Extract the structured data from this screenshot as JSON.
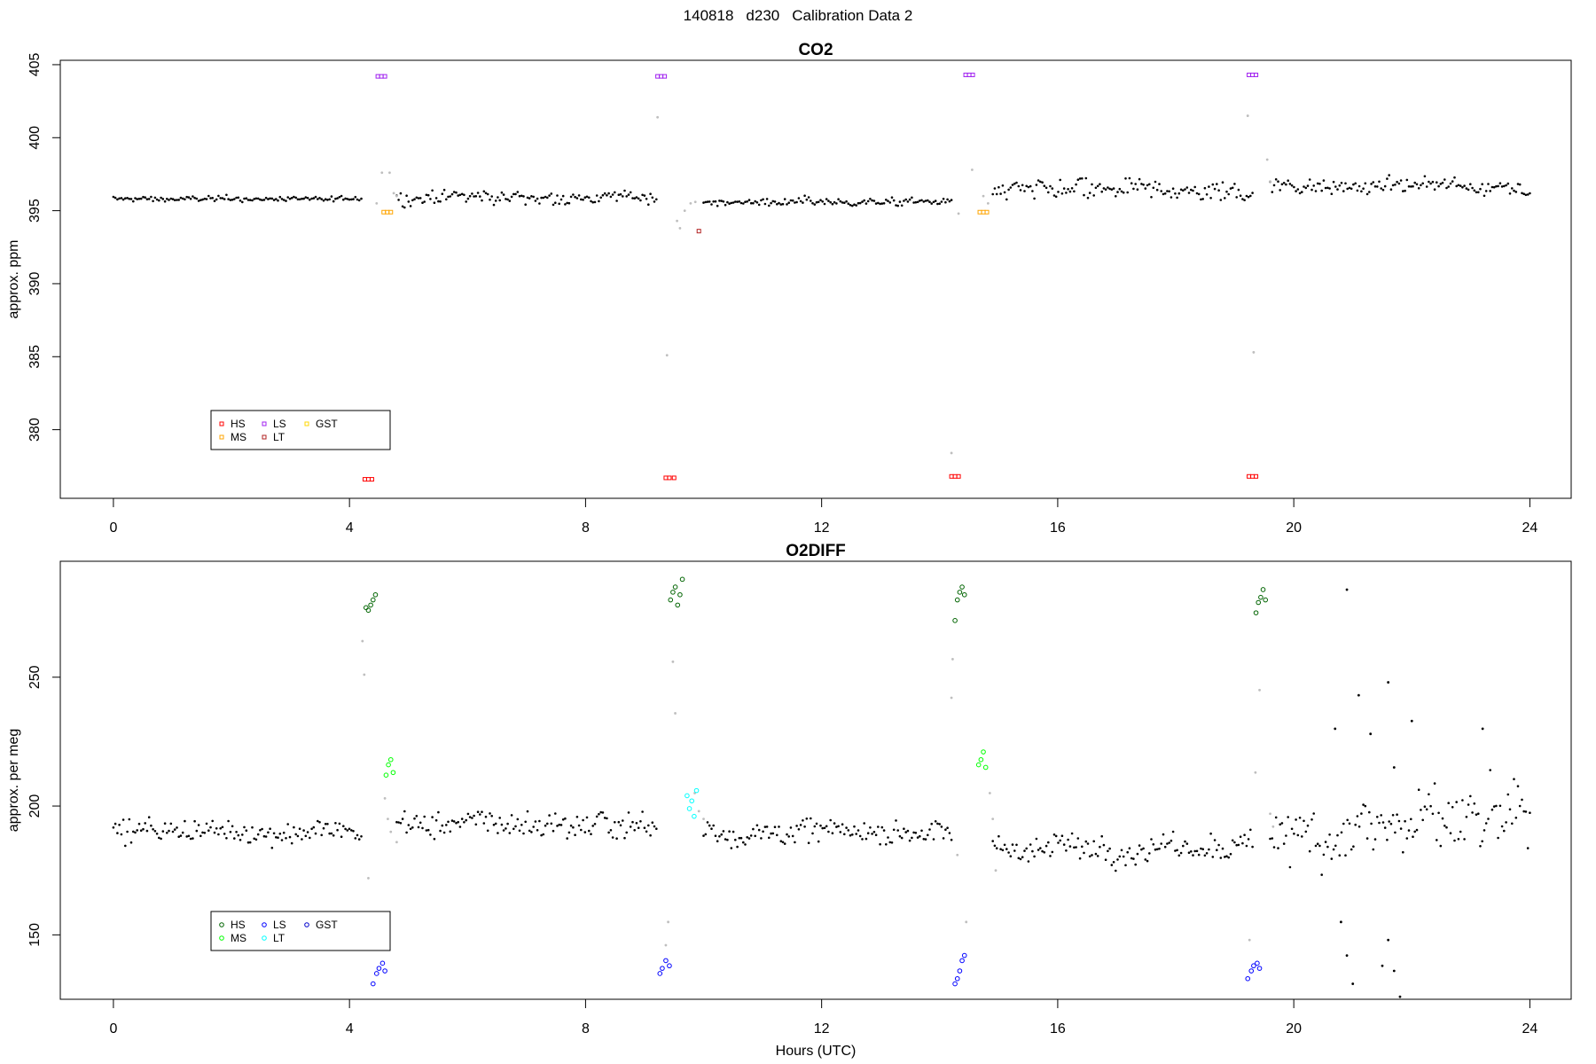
{
  "suptitle": {
    "date": "140818",
    "day": "d230",
    "label": "Calibration Data 2"
  },
  "colors": {
    "HS": "#ff0000",
    "MS": "#ffa500",
    "LS": "#a020f0",
    "LT": "#b22222",
    "GST": "#ffd700",
    "HS_o2": "#006400",
    "MS_o2": "#00ff00",
    "LS_o2": "#0000ff",
    "LT_o2": "#00ffff",
    "GST_o2": "#0000cd",
    "data": "#000000",
    "flagged": "#bebebe"
  },
  "chart_data": [
    {
      "type": "scatter",
      "title": "CO2",
      "xlabel": "",
      "ylabel": "approx. ppm",
      "xlim": [
        -0.9,
        24.7
      ],
      "ylim": [
        375.3,
        405.3
      ],
      "xticks": [
        "0",
        "4",
        "8",
        "12",
        "16",
        "20",
        "24"
      ],
      "yticks": [
        "380",
        "385",
        "390",
        "395",
        "400",
        "405"
      ],
      "grid": false,
      "legend": {
        "placement": "bottom-left",
        "entries": [
          "HS",
          "MS",
          "LS",
          "LT",
          "GST"
        ]
      },
      "ambient_segments": [
        {
          "x": [
            0.0,
            4.2
          ],
          "base": 395.8,
          "noise": 0.2
        },
        {
          "x": [
            4.8,
            9.2
          ],
          "base": 395.9,
          "noise": 0.5
        },
        {
          "x": [
            10.0,
            14.2
          ],
          "base": 395.6,
          "noise": 0.3
        },
        {
          "x": [
            14.9,
            19.3
          ],
          "base": 396.3,
          "noise": 0.8
        },
        {
          "x": [
            19.6,
            24.0
          ],
          "base": 396.7,
          "noise": 0.6
        }
      ],
      "flagged_points": [
        [
          4.46,
          395.5
        ],
        [
          4.55,
          397.6
        ],
        [
          4.68,
          397.6
        ],
        [
          4.75,
          396.2
        ],
        [
          4.8,
          396.0
        ],
        [
          9.22,
          401.4
        ],
        [
          9.38,
          385.1
        ],
        [
          9.55,
          394.3
        ],
        [
          9.6,
          393.8
        ],
        [
          9.68,
          395.0
        ],
        [
          9.78,
          395.5
        ],
        [
          9.86,
          395.6
        ],
        [
          14.2,
          378.4
        ],
        [
          14.32,
          394.8
        ],
        [
          14.55,
          397.8
        ],
        [
          14.74,
          396.0
        ],
        [
          14.82,
          395.5
        ],
        [
          19.22,
          401.5
        ],
        [
          19.32,
          385.3
        ],
        [
          19.55,
          398.5
        ],
        [
          19.6,
          397.0
        ]
      ],
      "series": [
        {
          "name": "HS",
          "points": [
            [
              4.26,
              376.6
            ],
            [
              4.32,
              376.6
            ],
            [
              4.38,
              376.6
            ],
            [
              9.36,
              376.7
            ],
            [
              9.42,
              376.7
            ],
            [
              9.5,
              376.7
            ],
            [
              14.2,
              376.8
            ],
            [
              14.26,
              376.8
            ],
            [
              14.32,
              376.8
            ],
            [
              19.24,
              376.8
            ],
            [
              19.3,
              376.8
            ],
            [
              19.36,
              376.8
            ]
          ]
        },
        {
          "name": "MS",
          "points": [
            [
              4.58,
              394.9
            ],
            [
              4.64,
              394.9
            ],
            [
              4.7,
              394.9
            ],
            [
              14.68,
              394.9
            ],
            [
              14.74,
              394.9
            ],
            [
              14.8,
              394.9
            ]
          ]
        },
        {
          "name": "LS",
          "points": [
            [
              4.48,
              404.2
            ],
            [
              4.54,
              404.2
            ],
            [
              4.6,
              404.2
            ],
            [
              9.22,
              404.2
            ],
            [
              9.28,
              404.2
            ],
            [
              9.34,
              404.2
            ],
            [
              14.44,
              404.3
            ],
            [
              14.5,
              404.3
            ],
            [
              14.56,
              404.3
            ],
            [
              19.24,
              404.3
            ],
            [
              19.3,
              404.3
            ],
            [
              19.36,
              404.3
            ]
          ]
        },
        {
          "name": "LT",
          "points": [
            [
              9.92,
              393.6
            ]
          ]
        },
        {
          "name": "GST",
          "points": []
        }
      ]
    },
    {
      "type": "scatter",
      "title": "O2DIFF",
      "xlabel": "Hours (UTC)",
      "ylabel": "approx. per meg",
      "xlim": [
        -0.9,
        24.7
      ],
      "ylim": [
        125,
        295
      ],
      "xticks": [
        "0",
        "4",
        "8",
        "12",
        "16",
        "20",
        "24"
      ],
      "yticks": [
        "150",
        "200",
        "250"
      ],
      "grid": false,
      "legend": {
        "placement": "bottom-left",
        "entries": [
          "HS",
          "MS",
          "LS",
          "LT",
          "GST"
        ]
      },
      "ambient_segments": [
        {
          "x": [
            0.0,
            4.2
          ],
          "base": 190,
          "noise": 5
        },
        {
          "x": [
            4.8,
            9.2
          ],
          "base": 193,
          "noise": 6
        },
        {
          "x": [
            10.0,
            14.2
          ],
          "base": 190,
          "noise": 5
        },
        {
          "x": [
            14.9,
            19.3
          ],
          "base": 184,
          "noise": 6
        },
        {
          "x": [
            19.6,
            24.0
          ],
          "base": 192,
          "noise": 14
        }
      ],
      "outliers": [
        [
          20.9,
          284
        ],
        [
          21.6,
          248
        ],
        [
          21.3,
          228
        ],
        [
          21.7,
          215
        ],
        [
          22.0,
          233
        ],
        [
          21.1,
          243
        ],
        [
          20.7,
          230
        ],
        [
          21.5,
          138
        ],
        [
          21.8,
          126
        ],
        [
          21.6,
          148
        ],
        [
          20.9,
          142
        ],
        [
          21.0,
          131
        ],
        [
          23.2,
          230
        ],
        [
          20.8,
          155
        ],
        [
          21.7,
          136
        ]
      ],
      "flagged_points": [
        [
          4.22,
          264
        ],
        [
          4.25,
          251
        ],
        [
          4.32,
          172
        ],
        [
          4.6,
          203
        ],
        [
          4.65,
          195
        ],
        [
          4.7,
          190
        ],
        [
          4.8,
          186
        ],
        [
          9.36,
          146
        ],
        [
          9.4,
          155
        ],
        [
          9.48,
          256
        ],
        [
          9.52,
          236
        ],
        [
          9.85,
          205
        ],
        [
          9.92,
          198
        ],
        [
          10.0,
          195
        ],
        [
          14.2,
          242
        ],
        [
          14.22,
          257
        ],
        [
          14.3,
          181
        ],
        [
          14.45,
          155
        ],
        [
          14.85,
          205
        ],
        [
          14.9,
          195
        ],
        [
          14.95,
          175
        ],
        [
          19.25,
          148
        ],
        [
          19.35,
          213
        ],
        [
          19.42,
          245
        ],
        [
          19.6,
          197
        ],
        [
          19.65,
          192
        ]
      ],
      "series": [
        {
          "name": "HS",
          "points": [
            [
              4.28,
              277
            ],
            [
              4.32,
              276
            ],
            [
              4.36,
              278
            ],
            [
              4.4,
              280
            ],
            [
              4.44,
              282
            ],
            [
              9.44,
              280
            ],
            [
              9.48,
              283
            ],
            [
              9.52,
              285
            ],
            [
              9.56,
              278
            ],
            [
              9.6,
              282
            ],
            [
              9.64,
              288
            ],
            [
              14.26,
              272
            ],
            [
              14.3,
              280
            ],
            [
              14.34,
              283
            ],
            [
              14.38,
              285
            ],
            [
              14.42,
              282
            ],
            [
              19.36,
              275
            ],
            [
              19.4,
              279
            ],
            [
              19.44,
              281
            ],
            [
              19.48,
              284
            ],
            [
              19.52,
              280
            ]
          ]
        },
        {
          "name": "MS",
          "points": [
            [
              4.62,
              212
            ],
            [
              4.66,
              216
            ],
            [
              4.7,
              218
            ],
            [
              4.74,
              213
            ],
            [
              14.66,
              216
            ],
            [
              14.7,
              218
            ],
            [
              14.74,
              221
            ],
            [
              14.78,
              215
            ]
          ]
        },
        {
          "name": "LS",
          "points": [
            [
              4.4,
              131
            ],
            [
              4.46,
              135
            ],
            [
              4.5,
              137
            ],
            [
              4.56,
              139
            ],
            [
              4.6,
              136
            ],
            [
              9.26,
              135
            ],
            [
              9.3,
              137
            ],
            [
              9.36,
              140
            ],
            [
              9.42,
              138
            ],
            [
              14.26,
              131
            ],
            [
              14.3,
              133
            ],
            [
              14.34,
              136
            ],
            [
              14.38,
              140
            ],
            [
              14.42,
              142
            ],
            [
              19.22,
              133
            ],
            [
              19.28,
              136
            ],
            [
              19.32,
              138
            ],
            [
              19.38,
              139
            ],
            [
              19.42,
              137
            ]
          ]
        },
        {
          "name": "LT",
          "points": [
            [
              9.72,
              204
            ],
            [
              9.76,
              199
            ],
            [
              9.8,
              202
            ],
            [
              9.84,
              196
            ],
            [
              9.88,
              206
            ]
          ]
        },
        {
          "name": "GST",
          "points": []
        }
      ]
    }
  ]
}
